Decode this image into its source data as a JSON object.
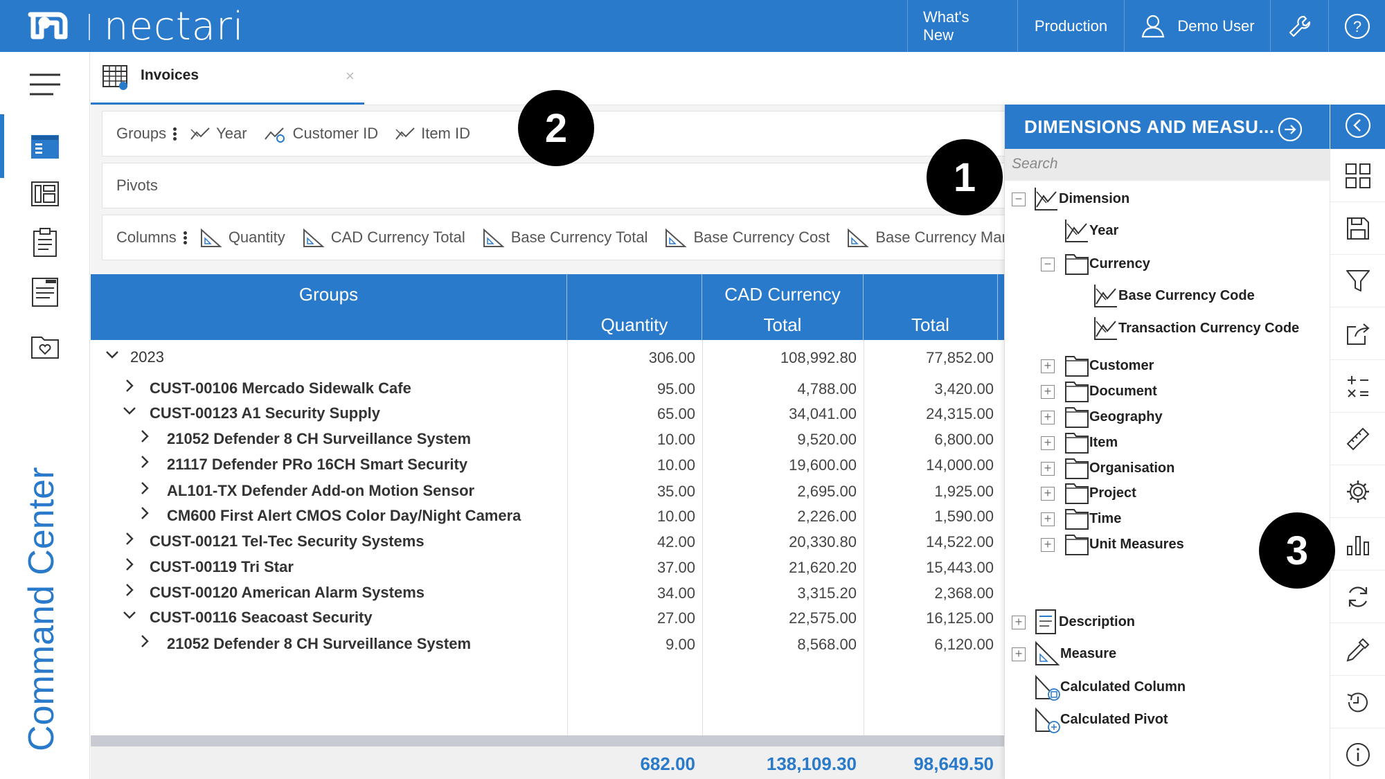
{
  "app": {
    "brand": "nectari",
    "nav": {
      "whats_new": "What's New",
      "production": "Production",
      "user": "Demo User"
    },
    "vertical_label": "Command Center"
  },
  "tab": {
    "title": "Invoices",
    "close": "×"
  },
  "shelves": {
    "groups": {
      "label": "Groups",
      "items": [
        "Year",
        "Customer ID",
        "Item ID"
      ]
    },
    "pivots": {
      "label": "Pivots"
    },
    "columns": {
      "label": "Columns",
      "items": [
        "Quantity",
        "CAD Currency Total",
        "Base Currency Total",
        "Base Currency Cost",
        "Base Currency Mar"
      ]
    }
  },
  "grid": {
    "headers": {
      "groups": "Groups",
      "quantity": "Quantity",
      "cad_line1": "CAD Currency",
      "cad_line2": "Total",
      "total": "Total"
    },
    "rows": [
      {
        "label": "2023",
        "quantity": "306.00",
        "cad": "108,992.80",
        "total": "77,852.00",
        "expanded": true
      },
      {
        "label": "CUST-00106 Mercado Sidewalk Cafe",
        "quantity": "95.00",
        "cad": "4,788.00",
        "total": "3,420.00",
        "expanded": false
      },
      {
        "label": "CUST-00123 A1 Security Supply",
        "quantity": "65.00",
        "cad": "34,041.00",
        "total": "24,315.00",
        "expanded": true
      },
      {
        "label": "21052 Defender 8 CH Surveillance System",
        "quantity": "10.00",
        "cad": "9,520.00",
        "total": "6,800.00",
        "expanded": false
      },
      {
        "label": "21117 Defender PRo 16CH Smart Security",
        "quantity": "10.00",
        "cad": "19,600.00",
        "total": "14,000.00",
        "expanded": false
      },
      {
        "label": "AL101-TX Defender Add-on Motion Sensor",
        "quantity": "35.00",
        "cad": "2,695.00",
        "total": "1,925.00",
        "expanded": false
      },
      {
        "label": "CM600 First Alert CMOS Color Day/Night Camera",
        "quantity": "10.00",
        "cad": "2,226.00",
        "total": "1,590.00",
        "expanded": false
      },
      {
        "label": "CUST-00121 Tel-Tec Security Systems",
        "quantity": "42.00",
        "cad": "20,330.80",
        "total": "14,522.00",
        "expanded": false
      },
      {
        "label": "CUST-00119 Tri Star",
        "quantity": "37.00",
        "cad": "21,620.20",
        "total": "15,443.00",
        "expanded": false
      },
      {
        "label": "CUST-00120 American Alarm Systems",
        "quantity": "34.00",
        "cad": "3,315.20",
        "total": "2,368.00",
        "expanded": false
      },
      {
        "label": "CUST-00116 Seacoast Security",
        "quantity": "27.00",
        "cad": "22,575.00",
        "total": "16,125.00",
        "expanded": true
      },
      {
        "label": "21052 Defender 8 CH Surveillance System",
        "quantity": "9.00",
        "cad": "8,568.00",
        "total": "6,120.00",
        "expanded": false
      }
    ],
    "totals": {
      "quantity": "682.00",
      "cad": "138,109.30",
      "total": "98,649.50"
    }
  },
  "dimensions_panel": {
    "title": "DIMENSIONS AND MEASU...",
    "search_placeholder": "Search",
    "tree": {
      "dimension": "Dimension",
      "year": "Year",
      "currency": "Currency",
      "base_currency_code": "Base Currency Code",
      "transaction_currency_code": "Transaction Currency Code",
      "customer": "Customer",
      "document": "Document",
      "geography": "Geography",
      "item": "Item",
      "organisation": "Organisation",
      "project": "Project",
      "time": "Time",
      "unit_measures": "Unit Measures",
      "description": "Description",
      "measure": "Measure",
      "calculated_column": "Calculated Column",
      "calculated_pivot": "Calculated Pivot"
    }
  },
  "callouts": {
    "one": "1",
    "two": "2",
    "three": "3"
  },
  "colors": {
    "brand_blue": "#2a7acb",
    "header_text": "#ffffff"
  }
}
